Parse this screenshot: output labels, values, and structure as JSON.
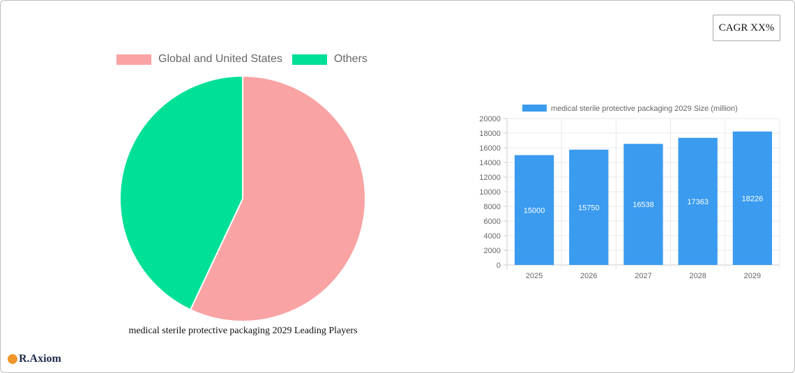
{
  "cagr_badge": "CAGR XX%",
  "brand": "R.Axiom",
  "chart_data": [
    {
      "type": "pie",
      "title": "medical sterile protective packaging 2029 Leading Players",
      "categories": [
        "Global and United States",
        "Others"
      ],
      "values": [
        57,
        43
      ],
      "colors": [
        "#f9a3a4",
        "#00e096"
      ],
      "legend_position": "top"
    },
    {
      "type": "bar",
      "title": "",
      "legend": [
        "medical sterile protective packaging 2029 Size (million)"
      ],
      "categories": [
        "2025",
        "2026",
        "2027",
        "2028",
        "2029"
      ],
      "values": [
        15000,
        15750,
        16538,
        17363,
        18226
      ],
      "data_labels": [
        "15000",
        "15750",
        "16538",
        "17363",
        "18226"
      ],
      "color": "#3a9bef",
      "xlabel": "",
      "ylabel": "",
      "ylim": [
        0,
        20000
      ],
      "yticks": [
        "0",
        "2000",
        "4000",
        "6000",
        "8000",
        "10000",
        "12000",
        "14000",
        "16000",
        "18000",
        "20000"
      ],
      "grid": true,
      "legend_position": "top"
    }
  ]
}
